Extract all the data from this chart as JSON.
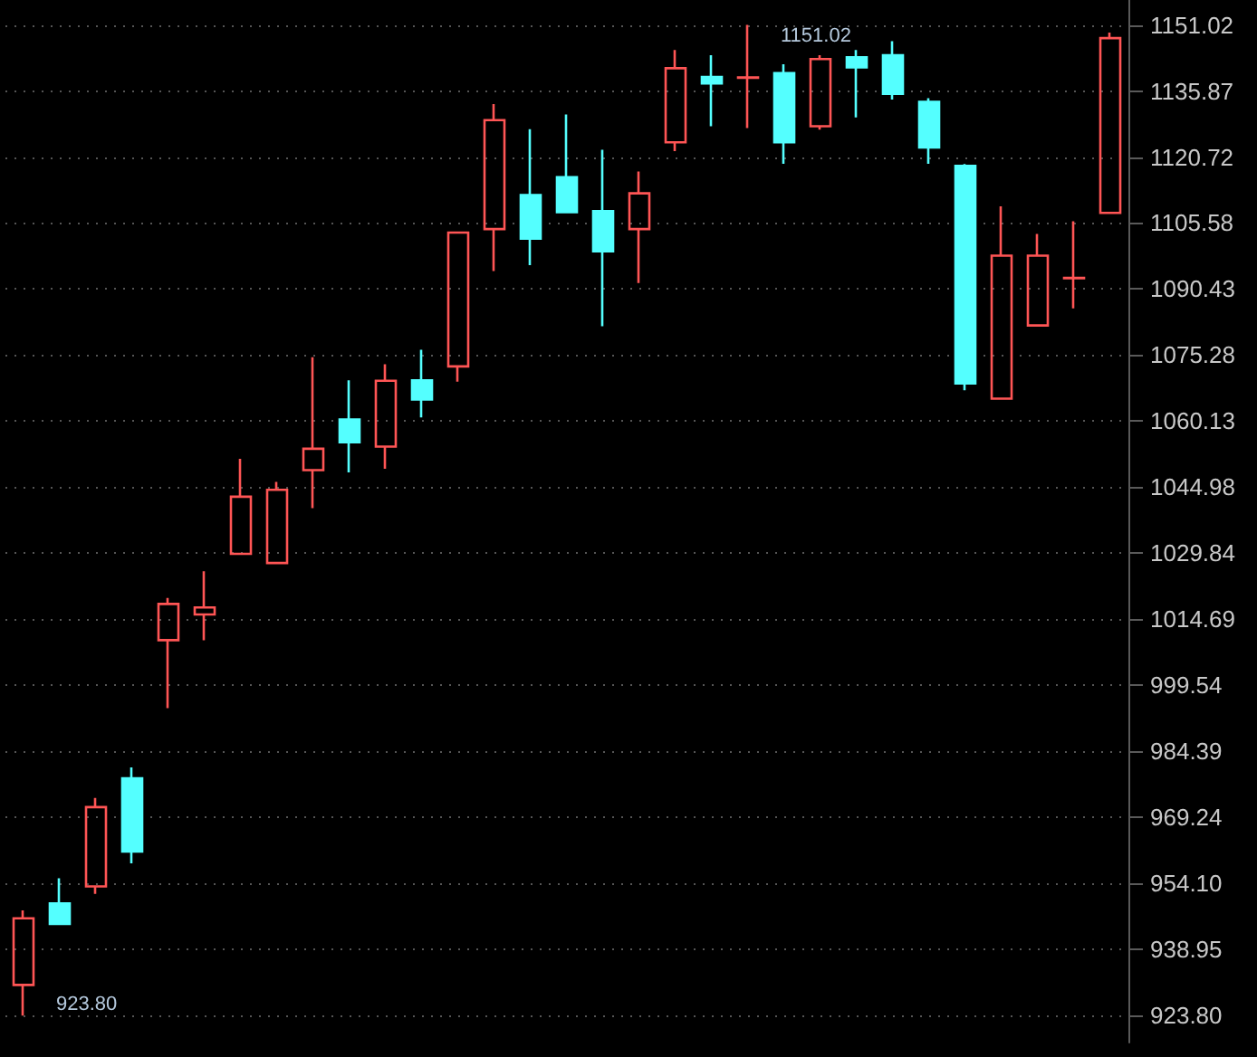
{
  "chart_data": {
    "type": "candlestick",
    "categories": [
      null,
      null,
      null,
      null,
      null,
      null,
      null,
      null,
      null,
      null,
      null,
      null,
      null,
      null,
      null,
      null,
      null,
      null,
      null,
      null,
      null,
      null,
      null,
      null,
      null,
      null,
      null,
      null,
      null,
      null,
      null
    ],
    "ohlc": [
      [
        930.8,
        947.9,
        923.8,
        946.1
      ],
      [
        949.5,
        955.3,
        944.8,
        944.8
      ],
      [
        953.4,
        973.7,
        951.7,
        971.6
      ],
      [
        978.2,
        980.7,
        958.7,
        961.4
      ],
      [
        1009.9,
        1019.6,
        994.3,
        1018.2
      ],
      [
        1015.8,
        1025.7,
        1009.9,
        1017.4
      ],
      [
        1029.7,
        1051.5,
        1029.7,
        1042.8
      ],
      [
        1027.6,
        1046.2,
        1027.6,
        1044.4
      ],
      [
        1048.9,
        1074.8,
        1040.2,
        1053.8
      ],
      [
        1060.5,
        1069.5,
        1048.4,
        1055.3
      ],
      [
        1054.3,
        1073.2,
        1049.2,
        1069.4
      ],
      [
        1069.5,
        1076.5,
        1061.0,
        1065.1
      ],
      [
        1072.7,
        1103.4,
        1069.2,
        1103.4
      ],
      [
        1104.2,
        1132.9,
        1094.6,
        1129.2
      ],
      [
        1112.0,
        1127.1,
        1095.9,
        1102.0
      ],
      [
        1116.1,
        1130.5,
        1108.1,
        1108.1
      ],
      [
        1108.3,
        1122.4,
        1081.9,
        1099.1
      ],
      [
        1104.2,
        1117.4,
        1091.8,
        1112.4
      ],
      [
        1124.1,
        1145.3,
        1122.1,
        1141.1
      ],
      [
        1139.1,
        1144.1,
        1127.8,
        1137.6
      ],
      [
        1138.9,
        1151.02,
        1127.4,
        1139.0
      ],
      [
        1140.0,
        1142.0,
        1119.2,
        1124.1
      ],
      [
        1127.8,
        1144.1,
        1127.0,
        1143.2
      ],
      [
        1143.6,
        1145.3,
        1129.8,
        1141.3
      ],
      [
        1144.1,
        1147.3,
        1133.9,
        1135.2
      ],
      [
        1133.4,
        1134.2,
        1119.2,
        1122.9
      ],
      [
        1118.7,
        1119.1,
        1067.2,
        1068.8
      ],
      [
        1065.3,
        1109.4,
        1065.3,
        1098.1
      ],
      [
        1082.1,
        1103.1,
        1082.1,
        1098.1
      ],
      [
        1092.9,
        1106.0,
        1086.0,
        1093.0
      ],
      [
        1107.9,
        1149.3,
        1107.9,
        1148.0
      ]
    ],
    "colors": [
      "#ff5555",
      "#54ffff",
      "#ff5555",
      "#54ffff",
      "#ff5555",
      "#ff5555",
      "#ff5555",
      "#ff5555",
      "#ff5555",
      "#54ffff",
      "#ff5555",
      "#54ffff",
      "#ff5555",
      "#ff5555",
      "#54ffff",
      "#54ffff",
      "#54ffff",
      "#ff5555",
      "#ff5555",
      "#54ffff",
      "#ff5555",
      "#54ffff",
      "#ff5555",
      "#54ffff",
      "#54ffff",
      "#54ffff",
      "#54ffff",
      "#ff5555",
      "#ff5555",
      "#ff5555",
      "#ff5555"
    ],
    "ylim": [
      917.6,
      1156.75
    ],
    "yticks": [
      {
        "value": 923.8,
        "label": "923.80"
      },
      {
        "value": 938.95,
        "label": "938.95"
      },
      {
        "value": 954.1,
        "label": "954.10"
      },
      {
        "value": 969.24,
        "label": "969.24"
      },
      {
        "value": 984.39,
        "label": "984.39"
      },
      {
        "value": 999.54,
        "label": "999.54"
      },
      {
        "value": 1014.69,
        "label": "1014.69"
      },
      {
        "value": 1029.84,
        "label": "1029.84"
      },
      {
        "value": 1044.98,
        "label": "1044.98"
      },
      {
        "value": 1060.13,
        "label": "1060.13"
      },
      {
        "value": 1075.28,
        "label": "1075.28"
      },
      {
        "value": 1090.43,
        "label": "1090.43"
      },
      {
        "value": 1105.58,
        "label": "1105.58"
      },
      {
        "value": 1120.72,
        "label": "1120.72"
      },
      {
        "value": 1135.87,
        "label": "1135.87"
      },
      {
        "value": 1151.02,
        "label": "1151.02"
      }
    ],
    "annotations": [
      "1151.02",
      "923.80"
    ],
    "grid": "y"
  }
}
